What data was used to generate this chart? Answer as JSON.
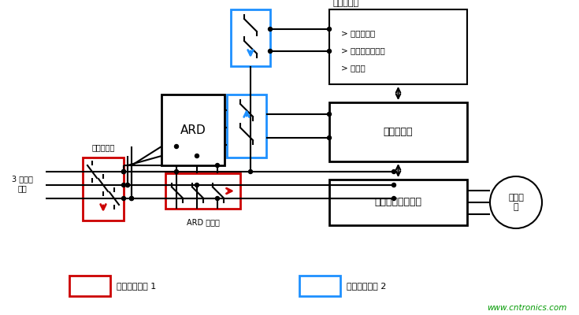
{
  "bg_color": "#ffffff",
  "line_color": "#000000",
  "red_color": "#cc0000",
  "blue_color": "#1e90ff",
  "green_color": "#009900",
  "labels": {
    "san_xiang": "3 相电源\n输入",
    "dian_yuan_jiechu": "电源接触器",
    "ARD": "ARD",
    "ARD_jiechu": "ARD 接触器",
    "qi_ta": "其他子系统",
    "men_ji": "> 门机控制器",
    "zhi_dong": "> 电梯制动控制器",
    "an_quan": "> 安全链",
    "dian_ti_kongzhi": "电梯控制器",
    "dian_ti_qianyun": "电梯牵引驱动装置",
    "qian_yin": "牵引电\n机",
    "legend1": "互锁接触器组 1",
    "legend2": "互锁接触器组 2",
    "website": "www.cntronics.com"
  }
}
